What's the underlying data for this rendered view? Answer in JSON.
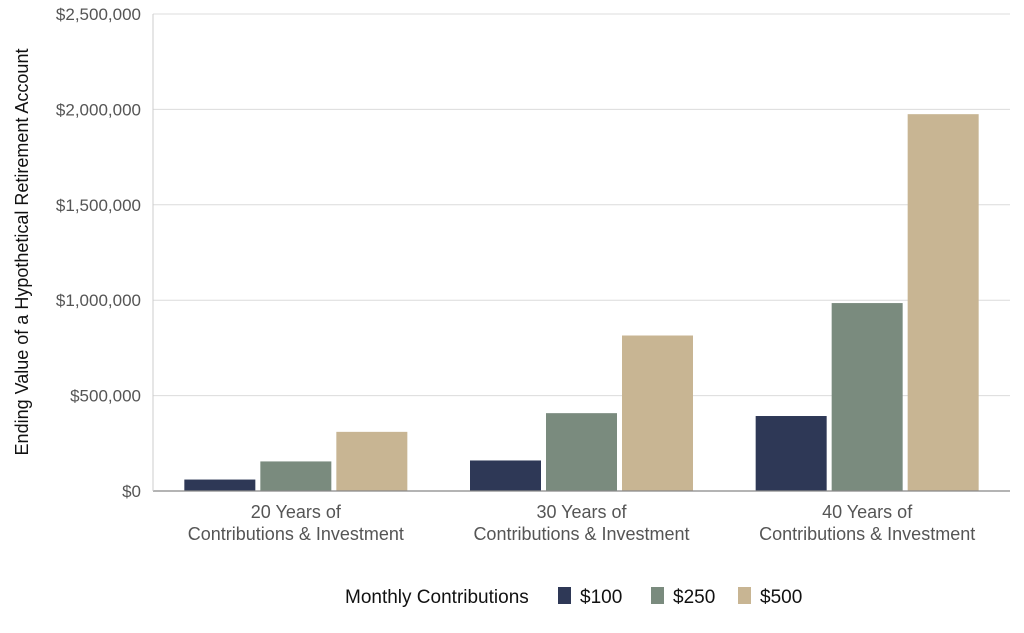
{
  "chart_data": {
    "type": "bar",
    "ylabel": "Ending Value of a Hypothetical Retirement Account",
    "ylim": [
      0,
      2500000
    ],
    "yticks": [
      0,
      500000,
      1000000,
      1500000,
      2000000,
      2500000
    ],
    "ytick_labels": [
      "$0",
      "$500,000",
      "$1,000,000",
      "$1,500,000",
      "$2,000,000",
      "$2,500,000"
    ],
    "categories": [
      [
        "20 Years of",
        "Contributions & Investment"
      ],
      [
        "30 Years of",
        "Contributions & Investment"
      ],
      [
        "40 Years of",
        "Contributions & Investment"
      ]
    ],
    "legend_title": "Monthly Contributions",
    "legend_position": "bottom",
    "grid": true,
    "series": [
      {
        "name": "$100",
        "color": "#2e3856",
        "values": [
          60000,
          160000,
          393000
        ]
      },
      {
        "name": "$250",
        "color": "#7a8b7e",
        "values": [
          155000,
          408000,
          985000
        ]
      },
      {
        "name": "$500",
        "color": "#c8b593",
        "values": [
          310000,
          815000,
          1975000
        ]
      }
    ]
  }
}
